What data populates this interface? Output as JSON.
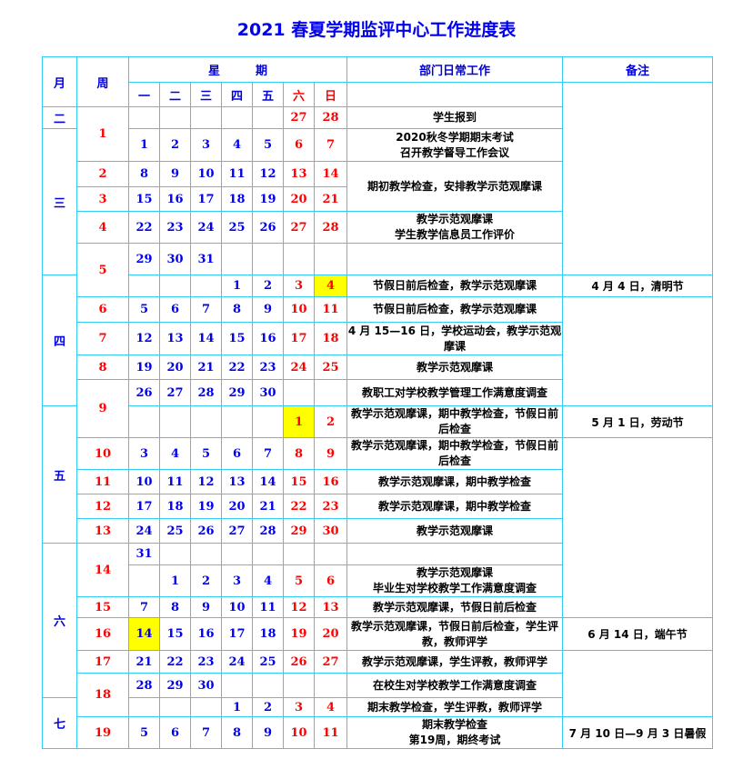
{
  "title": "2021 春夏学期监评中心工作进度表",
  "header": {
    "month": "月",
    "week": "周",
    "weekday_group": "星　　　期",
    "weekdays": [
      "一",
      "二",
      "三",
      "四",
      "五",
      "六",
      "日"
    ],
    "work": "部门日常工作",
    "notes": "备注"
  },
  "colors": {
    "border": "#33ccf5",
    "weekday": "#0000ee",
    "weekend": "#ff0000",
    "highlight": "#ffff00"
  },
  "months": [
    {
      "label": "二",
      "rows": 1
    },
    {
      "label": "三",
      "rows": 5
    },
    {
      "label": "四",
      "rows": 5
    },
    {
      "label": "五",
      "rows": 5
    },
    {
      "label": "六",
      "rows": 6
    },
    {
      "label": "七",
      "rows": 2
    }
  ],
  "weeks": [
    {
      "label": "1",
      "rows": 2
    },
    {
      "label": "2",
      "rows": 1
    },
    {
      "label": "3",
      "rows": 1
    },
    {
      "label": "4",
      "rows": 1
    },
    {
      "label": "5",
      "rows": 2
    },
    {
      "label": "6",
      "rows": 1
    },
    {
      "label": "7",
      "rows": 1
    },
    {
      "label": "8",
      "rows": 1
    },
    {
      "label": "9",
      "rows": 2
    },
    {
      "label": "10",
      "rows": 1
    },
    {
      "label": "11",
      "rows": 1
    },
    {
      "label": "12",
      "rows": 1
    },
    {
      "label": "13",
      "rows": 1
    },
    {
      "label": "14",
      "rows": 2
    },
    {
      "label": "15",
      "rows": 1
    },
    {
      "label": "16",
      "rows": 1
    },
    {
      "label": "17",
      "rows": 1
    },
    {
      "label": "18",
      "rows": 2
    },
    {
      "label": "19",
      "rows": 1
    }
  ],
  "rows": [
    {
      "days": [
        "",
        "",
        "",
        "",
        "",
        "27",
        "28"
      ]
    },
    {
      "days": [
        "1",
        "2",
        "3",
        "4",
        "5",
        "6",
        "7"
      ]
    },
    {
      "days": [
        "8",
        "9",
        "10",
        "11",
        "12",
        "13",
        "14"
      ]
    },
    {
      "days": [
        "15",
        "16",
        "17",
        "18",
        "19",
        "20",
        "21"
      ]
    },
    {
      "days": [
        "22",
        "23",
        "24",
        "25",
        "26",
        "27",
        "28"
      ]
    },
    {
      "days": [
        "29",
        "30",
        "31",
        "",
        "",
        "",
        ""
      ]
    },
    {
      "days": [
        "",
        "",
        "",
        "1",
        "2",
        "3",
        "4"
      ],
      "highlight": 6
    },
    {
      "days": [
        "5",
        "6",
        "7",
        "8",
        "9",
        "10",
        "11"
      ]
    },
    {
      "days": [
        "12",
        "13",
        "14",
        "15",
        "16",
        "17",
        "18"
      ]
    },
    {
      "days": [
        "19",
        "20",
        "21",
        "22",
        "23",
        "24",
        "25"
      ]
    },
    {
      "days": [
        "26",
        "27",
        "28",
        "29",
        "30",
        "",
        ""
      ]
    },
    {
      "days": [
        "",
        "",
        "",
        "",
        "",
        "1",
        "2"
      ],
      "highlight": 5
    },
    {
      "days": [
        "3",
        "4",
        "5",
        "6",
        "7",
        "8",
        "9"
      ]
    },
    {
      "days": [
        "10",
        "11",
        "12",
        "13",
        "14",
        "15",
        "16"
      ]
    },
    {
      "days": [
        "17",
        "18",
        "19",
        "20",
        "21",
        "22",
        "23"
      ]
    },
    {
      "days": [
        "24",
        "25",
        "26",
        "27",
        "28",
        "29",
        "30"
      ]
    },
    {
      "days": [
        "31",
        "",
        "",
        "",
        "",
        "",
        ""
      ]
    },
    {
      "days": [
        "",
        "1",
        "2",
        "3",
        "4",
        "5",
        "6"
      ]
    },
    {
      "days": [
        "7",
        "8",
        "9",
        "10",
        "11",
        "12",
        "13"
      ]
    },
    {
      "days": [
        "14",
        "15",
        "16",
        "17",
        "18",
        "19",
        "20"
      ],
      "highlight": 0
    },
    {
      "days": [
        "21",
        "22",
        "23",
        "24",
        "25",
        "26",
        "27"
      ]
    },
    {
      "days": [
        "28",
        "29",
        "30",
        "",
        "",
        "",
        ""
      ]
    },
    {
      "days": [
        "",
        "",
        "",
        "1",
        "2",
        "3",
        "4"
      ]
    },
    {
      "days": [
        "5",
        "6",
        "7",
        "8",
        "9",
        "10",
        "11"
      ]
    }
  ],
  "work": [
    {
      "text": "学生报到",
      "rows": 1
    },
    {
      "text": "2020秋冬学期期末考试\n召开教学督导工作会议",
      "rows": 1
    },
    {
      "text": "期初教学检查，安排教学示范观摩课",
      "rows": 2
    },
    {
      "text": "教学示范观摩课\n学生教学信息员工作评价",
      "rows": 1
    },
    {
      "text": "",
      "rows": 1
    },
    {
      "text": "节假日前后检查，教学示范观摩课",
      "rows": 1
    },
    {
      "text": "节假日前后检查，教学示范观摩课",
      "rows": 1
    },
    {
      "text": "4 月 15—16 日，学校运动会，教学示范观摩课",
      "rows": 1
    },
    {
      "text": "教学示范观摩课",
      "rows": 1
    },
    {
      "text": "教职工对学校教学管理工作满意度调查",
      "rows": 1
    },
    {
      "text": "教学示范观摩课，期中教学检查，节假日前后检查",
      "rows": 1
    },
    {
      "text": "教学示范观摩课，期中教学检查，节假日前后检查",
      "rows": 1
    },
    {
      "text": "教学示范观摩课，期中教学检查",
      "rows": 1
    },
    {
      "text": "教学示范观摩课，期中教学检查",
      "rows": 1
    },
    {
      "text": "教学示范观摩课",
      "rows": 1
    },
    {
      "text": "",
      "rows": 1
    },
    {
      "text": "教学示范观摩课\n毕业生对学校教学工作满意度调查",
      "rows": 1
    },
    {
      "text": "教学示范观摩课，节假日前后检查",
      "rows": 1
    },
    {
      "text": "教学示范观摩课，节假日前后检查，学生评教，教师评学",
      "rows": 1
    },
    {
      "text": "教学示范观摩课，学生评教，教师评学",
      "rows": 1
    },
    {
      "text": "在校生对学校教学工作满意度调查",
      "rows": 1
    },
    {
      "text": "期末教学检查，学生评教，教师评学",
      "rows": 1
    },
    {
      "text": "期末教学检查\n第19周，期终考试",
      "rows": 1
    }
  ],
  "notes": [
    {
      "text": "",
      "rows": 6
    },
    {
      "text": "4 月  4 日，清明节",
      "rows": 1
    },
    {
      "text": "",
      "rows": 4
    },
    {
      "text": "5 月  1 日，劳动节",
      "rows": 1
    },
    {
      "text": "",
      "rows": 7
    },
    {
      "text": "6 月  14 日，端午节",
      "rows": 1
    },
    {
      "text": "",
      "rows": 3
    },
    {
      "text": "7 月 10 日—9 月 3 日暑假",
      "rows": 1
    }
  ]
}
